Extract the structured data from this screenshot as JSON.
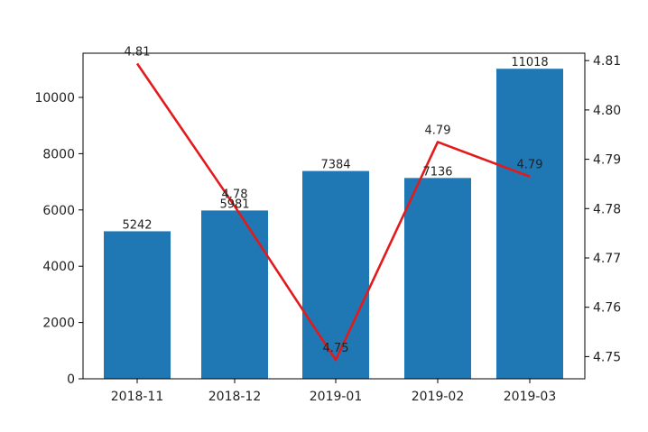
{
  "chart_data": {
    "type": "bar",
    "categories": [
      "2018-11",
      "2018-12",
      "2019-01",
      "2019-02",
      "2019-03"
    ],
    "series": [
      {
        "type": "bar",
        "axis": "left",
        "values": [
          5242,
          5981,
          7384,
          7136,
          11018
        ],
        "labels": [
          "5242",
          "5981",
          "7384",
          "7136",
          "11018"
        ],
        "color": "#1f77b4"
      },
      {
        "type": "line",
        "axis": "right",
        "values": [
          4.8094,
          4.7805,
          4.7493,
          4.7935,
          4.7865
        ],
        "labels": [
          "4.81",
          "4.78",
          "4.75",
          "4.79",
          "4.79"
        ],
        "color": "#e31a1c"
      }
    ],
    "left_axis": {
      "ylim": [
        0,
        11570
      ],
      "ticks": [
        0,
        2000,
        4000,
        6000,
        8000,
        10000
      ]
    },
    "right_axis": {
      "ylim": [
        4.7455,
        4.8115
      ],
      "ticks": [
        4.75,
        4.76,
        4.77,
        4.78,
        4.79,
        4.8,
        4.81
      ],
      "tick_labels": [
        "4.75",
        "4.76",
        "4.77",
        "4.78",
        "4.79",
        "4.80",
        "4.81"
      ]
    },
    "grid": false,
    "title": "",
    "xlabel": "",
    "ylabel": ""
  }
}
